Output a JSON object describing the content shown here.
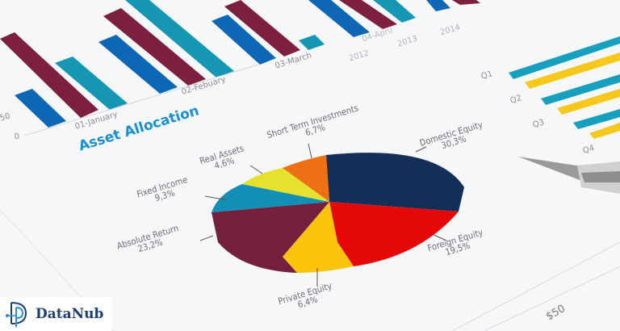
{
  "bar_chart": {
    "x_ticks": [
      "01-January",
      "02-Febuary",
      "03-March",
      "04-April"
    ],
    "y_ticks": [
      "0",
      "50"
    ],
    "legend": [
      "2012",
      "2013",
      "2014"
    ],
    "colors": {
      "blue": "#0e67b5",
      "teal": "#1597b3",
      "maroon": "#7d1f3e"
    }
  },
  "pie_chart": {
    "title": "Asset Allocation",
    "slices": [
      {
        "label": "Domestic Equity",
        "value": "30,3%",
        "color": "#132f57"
      },
      {
        "label": "Foreign Equity",
        "value": "19,5%",
        "color": "#e40808"
      },
      {
        "label": "Private Equity",
        "value": "6,4%",
        "color": "#fcc30c"
      },
      {
        "label": "Absolute Return",
        "value": "23,2%",
        "color": "#741f3c"
      },
      {
        "label": "Fixed Income",
        "value": "9,3%",
        "color": "#118fb6"
      },
      {
        "label": "Real Assets",
        "value": "4,6%",
        "color": "#e6e12c"
      },
      {
        "label": "Short Term Investments",
        "value": "6,7%",
        "color": "#ee7015"
      }
    ]
  },
  "hbar_chart": {
    "y_ticks": [
      "Q1",
      "Q2",
      "Q3",
      "Q4"
    ],
    "colors": {
      "teal": "#17a0be",
      "yellow": "#f6c81c"
    }
  },
  "price_label": "$50",
  "logo": {
    "text": "DataNub"
  }
}
